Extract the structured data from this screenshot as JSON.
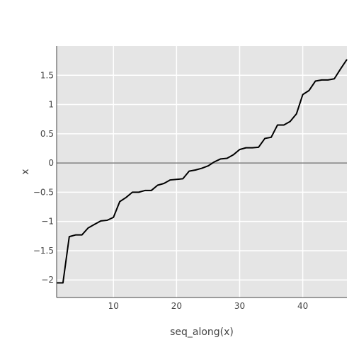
{
  "chart_data": {
    "type": "line",
    "title": "",
    "xlabel": "seq_along(x)",
    "ylabel": "x",
    "xlim": [
      1,
      47
    ],
    "ylim": [
      -2.3,
      2.0
    ],
    "xticks": [
      10,
      20,
      30,
      40
    ],
    "xtick_labels": [
      "10",
      "20",
      "30",
      "40"
    ],
    "yticks": [
      -2,
      -1.5,
      -1,
      -0.5,
      0,
      0.5,
      1,
      1.5
    ],
    "ytick_labels": [
      "−2",
      "−1.5",
      "−1",
      "−0.5",
      "0",
      "0.5",
      "1",
      "1.5"
    ],
    "grid": true,
    "zero_line": true,
    "background": "#e5e5e5",
    "line_color": "#000000",
    "zero_line_color": "#808080",
    "series": [
      {
        "x": [
          1,
          2,
          3,
          4,
          5,
          6,
          7,
          8,
          9,
          10,
          11,
          12,
          13,
          14,
          15,
          16,
          17,
          18,
          19,
          20,
          21,
          22,
          23,
          24,
          25,
          26,
          27,
          28,
          29,
          30,
          31,
          32,
          33,
          34,
          35,
          36,
          37,
          38,
          39,
          40,
          41,
          42,
          43,
          44,
          45,
          46,
          47
        ],
        "values": [
          -2.05,
          -2.05,
          -1.26,
          -1.23,
          -1.23,
          -1.11,
          -1.05,
          -0.99,
          -0.98,
          -0.93,
          -0.66,
          -0.59,
          -0.5,
          -0.5,
          -0.47,
          -0.47,
          -0.38,
          -0.35,
          -0.29,
          -0.28,
          -0.27,
          -0.14,
          -0.12,
          -0.09,
          -0.05,
          0.02,
          0.07,
          0.08,
          0.14,
          0.23,
          0.26,
          0.26,
          0.27,
          0.42,
          0.44,
          0.65,
          0.65,
          0.71,
          0.84,
          1.17,
          1.24,
          1.4,
          1.42,
          1.42,
          1.44,
          1.61,
          1.77
        ]
      }
    ]
  }
}
